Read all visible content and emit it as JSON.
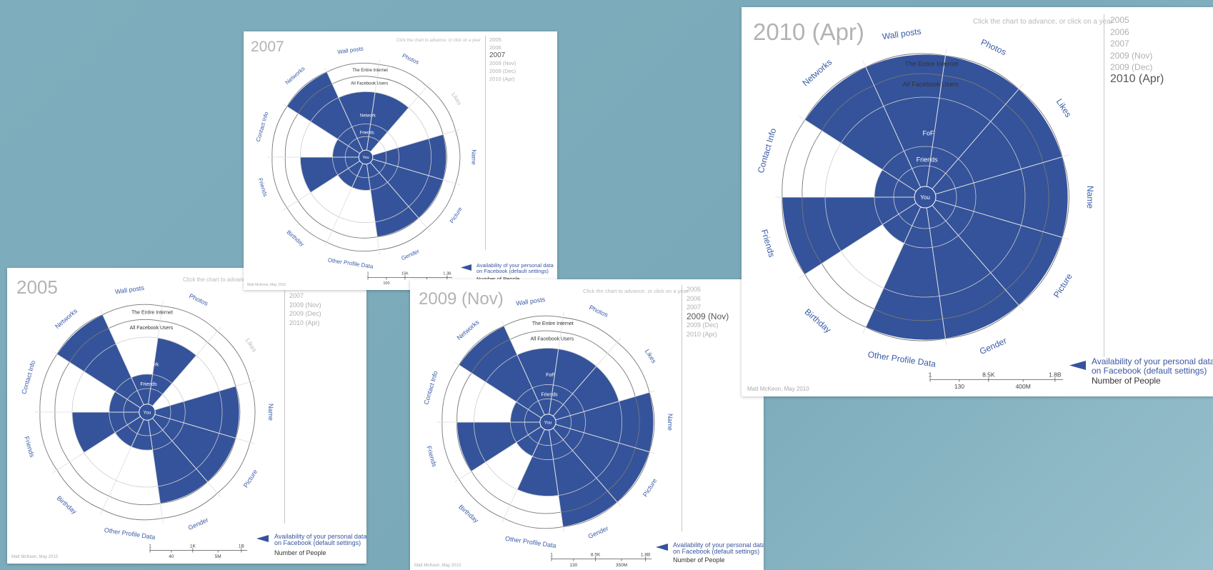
{
  "ui": {
    "hint": "Click the chart to advance, or click on a year",
    "years": [
      "2005",
      "2006",
      "2007",
      "2009 (Nov)",
      "2009 (Dec)",
      "2010 (Apr)"
    ],
    "legend_line1": "Availability of your personal data",
    "legend_line2": "on Facebook (default settings)",
    "scale_title": "Number of People",
    "credit": "Matt McKeon, May 2010",
    "colors": {
      "filled": "#34539b",
      "label": "#3a5ca8",
      "faded_label": "#bbbbbb",
      "ring": "#cccccc",
      "outline": "#777777"
    }
  },
  "chart_data": [
    {
      "type": "polar-area",
      "title": "2005",
      "active_year": "2005",
      "categories": [
        "Name",
        "Picture",
        "Gender",
        "Other Profile Data",
        "Birthday",
        "Friends",
        "Contact Info",
        "Networks",
        "Wall posts",
        "Photos",
        "Likes"
      ],
      "rings": [
        "You",
        "Friends",
        "Network",
        "All Facebook Users",
        "The Entire Internet"
      ],
      "series": [
        {
          "values": [
            3,
            3,
            3,
            1,
            1,
            2,
            1,
            4,
            1,
            2,
            0
          ]
        }
      ],
      "category_visible": [
        true,
        true,
        true,
        true,
        true,
        true,
        true,
        true,
        true,
        true,
        false
      ],
      "scale": {
        "top_ticks": [
          "1",
          "1K",
          "1B"
        ],
        "bottom_ticks": [
          "40",
          "5M"
        ]
      }
    },
    {
      "type": "polar-area",
      "title": "2007",
      "active_year": "2007",
      "categories": [
        "Name",
        "Picture",
        "Gender",
        "Other Profile Data",
        "Birthday",
        "Friends",
        "Contact Info",
        "Networks",
        "Wall posts",
        "Photos",
        "Likes"
      ],
      "rings": [
        "You",
        "Friends",
        "Network",
        "All Facebook Users",
        "The Entire Internet"
      ],
      "series": [
        {
          "values": [
            3,
            3,
            3,
            1,
            1,
            2,
            1,
            4,
            2,
            2,
            0
          ]
        }
      ],
      "category_visible": [
        true,
        true,
        true,
        true,
        true,
        true,
        true,
        true,
        true,
        true,
        false
      ],
      "scale": {
        "top_ticks": [
          "1",
          "15K",
          "1.3B"
        ],
        "bottom_ticks": [
          "100",
          "50M"
        ]
      }
    },
    {
      "type": "polar-area",
      "title": "2009 (Nov)",
      "active_year": "2009 (Nov)",
      "categories": [
        "Name",
        "Picture",
        "Gender",
        "Other Profile Data",
        "Birthday",
        "Friends",
        "Contact Info",
        "Networks",
        "Wall posts",
        "Photos",
        "Likes"
      ],
      "rings": [
        "You",
        "Friends",
        "FoF",
        "All Facebook Users",
        "The Entire Internet"
      ],
      "series": [
        {
          "values": [
            4,
            4,
            4,
            2,
            1,
            3,
            1,
            4,
            2,
            2,
            2
          ]
        }
      ],
      "category_visible": [
        true,
        true,
        true,
        true,
        true,
        true,
        true,
        true,
        true,
        true,
        true
      ],
      "scale": {
        "top_ticks": [
          "1",
          "8.5K",
          "1.8B"
        ],
        "bottom_ticks": [
          "130",
          "350M"
        ]
      }
    },
    {
      "type": "polar-area",
      "title": "2010 (Apr)",
      "active_year": "2010 (Apr)",
      "categories": [
        "Name",
        "Picture",
        "Gender",
        "Other Profile Data",
        "Birthday",
        "Friends",
        "Contact Info",
        "Networks",
        "Wall posts",
        "Photos",
        "Likes"
      ],
      "rings": [
        "You",
        "Friends",
        "FoF",
        "All Facebook Users",
        "The Entire Internet"
      ],
      "series": [
        {
          "values": [
            4,
            4,
            4,
            4,
            1,
            4,
            1,
            4,
            4,
            4,
            4
          ]
        }
      ],
      "category_visible": [
        true,
        true,
        true,
        true,
        true,
        true,
        true,
        true,
        true,
        true,
        true
      ],
      "scale": {
        "top_ticks": [
          "1",
          "8.5K",
          "1.8B"
        ],
        "bottom_ticks": [
          "130",
          "400M"
        ]
      }
    }
  ]
}
